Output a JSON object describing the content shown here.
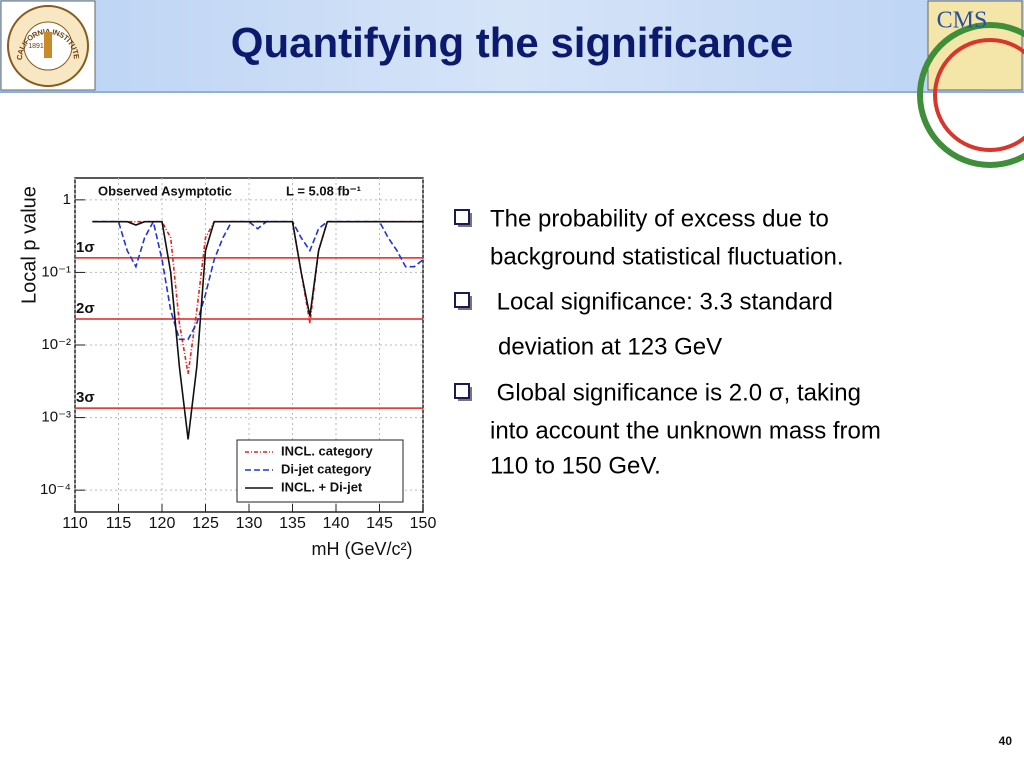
{
  "header": {
    "title": "Quantifying the significance"
  },
  "logos": {
    "left": {
      "ring_text": "CALIFORNIA INSTITUTE OF TECHNOLOGY",
      "year": "1891"
    },
    "right": {
      "text": "CMS"
    }
  },
  "chart_data": {
    "type": "line",
    "y_log_scale": true,
    "grid": true,
    "annotation": "Observed Asymptotic",
    "luminosity": "L = 5.08 fb⁻¹",
    "x_label": "mH (GeV/c²)",
    "y_label": "Local p value",
    "x": [
      110,
      111,
      112,
      113,
      114,
      115,
      116,
      117,
      118,
      119,
      120,
      121,
      122,
      123,
      124,
      125,
      126,
      127,
      128,
      129,
      130,
      131,
      132,
      133,
      134,
      135,
      136,
      137,
      138,
      139,
      140,
      141,
      142,
      143,
      144,
      145,
      146,
      147,
      148,
      149,
      150
    ],
    "xlim": [
      110,
      150
    ],
    "xticks": [
      110,
      115,
      120,
      125,
      130,
      135,
      140,
      145,
      150
    ],
    "ylim": [
      5e-05,
      2
    ],
    "yticks": [
      {
        "value": 1,
        "label": "1"
      },
      {
        "value": 0.1,
        "label": "10⁻¹"
      },
      {
        "value": 0.01,
        "label": "10⁻²"
      },
      {
        "value": 0.001,
        "label": "10⁻³"
      },
      {
        "value": 0.0001,
        "label": "10⁻⁴"
      }
    ],
    "reference_lines": [
      {
        "label": "1σ",
        "value": 0.1587,
        "color": "#e8211c"
      },
      {
        "label": "2σ",
        "value": 0.0228,
        "color": "#e8211c"
      },
      {
        "label": "3σ",
        "value": 0.00135,
        "color": "#e8211c"
      }
    ],
    "legend": "lower right",
    "series": [
      {
        "name": "INCL. category",
        "color": "#e8211c",
        "dash": "dashdot",
        "values": [
          null,
          null,
          0.5,
          0.5,
          0.5,
          0.5,
          0.5,
          0.5,
          0.5,
          0.5,
          0.5,
          0.3,
          0.02,
          0.004,
          0.03,
          0.3,
          0.5,
          0.5,
          0.5,
          0.5,
          0.5,
          0.5,
          0.5,
          0.5,
          0.5,
          0.5,
          0.1,
          0.02,
          0.2,
          0.5,
          0.5,
          0.5,
          0.5,
          0.5,
          0.5,
          0.5,
          0.5,
          0.5,
          0.5,
          0.5,
          0.5
        ]
      },
      {
        "name": "Di-jet category",
        "color": "#2033d8",
        "dash": "dashed",
        "values": [
          null,
          null,
          0.5,
          0.5,
          0.5,
          0.5,
          0.2,
          0.12,
          0.3,
          0.5,
          0.15,
          0.03,
          0.012,
          0.012,
          0.02,
          0.05,
          0.15,
          0.3,
          0.5,
          0.5,
          0.5,
          0.4,
          0.5,
          0.5,
          0.5,
          0.5,
          0.3,
          0.2,
          0.4,
          0.5,
          0.5,
          0.5,
          0.5,
          0.5,
          0.5,
          0.5,
          0.3,
          0.2,
          0.12,
          0.12,
          0.15
        ]
      },
      {
        "name": "INCL. + Di-jet",
        "color": "#111111",
        "dash": "solid",
        "values": [
          null,
          null,
          0.5,
          0.5,
          0.5,
          0.5,
          0.5,
          0.45,
          0.5,
          0.5,
          0.5,
          0.1,
          0.005,
          0.0005,
          0.005,
          0.2,
          0.5,
          0.5,
          0.5,
          0.5,
          0.5,
          0.5,
          0.5,
          0.5,
          0.5,
          0.5,
          0.1,
          0.025,
          0.2,
          0.5,
          0.5,
          0.5,
          0.5,
          0.5,
          0.5,
          0.5,
          0.5,
          0.5,
          0.5,
          0.5,
          0.5
        ]
      }
    ]
  },
  "bullets": [
    {
      "lines": [
        "The probability of excess due to",
        "background statistical fluctuation."
      ]
    },
    {
      "lines": [
        " Local significance: 3.3 standard",
        "deviation at 123 GeV"
      ]
    },
    {
      "lines": [
        " Global significance is 2.0 σ, taking",
        "into account the unknown mass from",
        "110 to 150 GeV."
      ]
    }
  ],
  "page_number": "40"
}
